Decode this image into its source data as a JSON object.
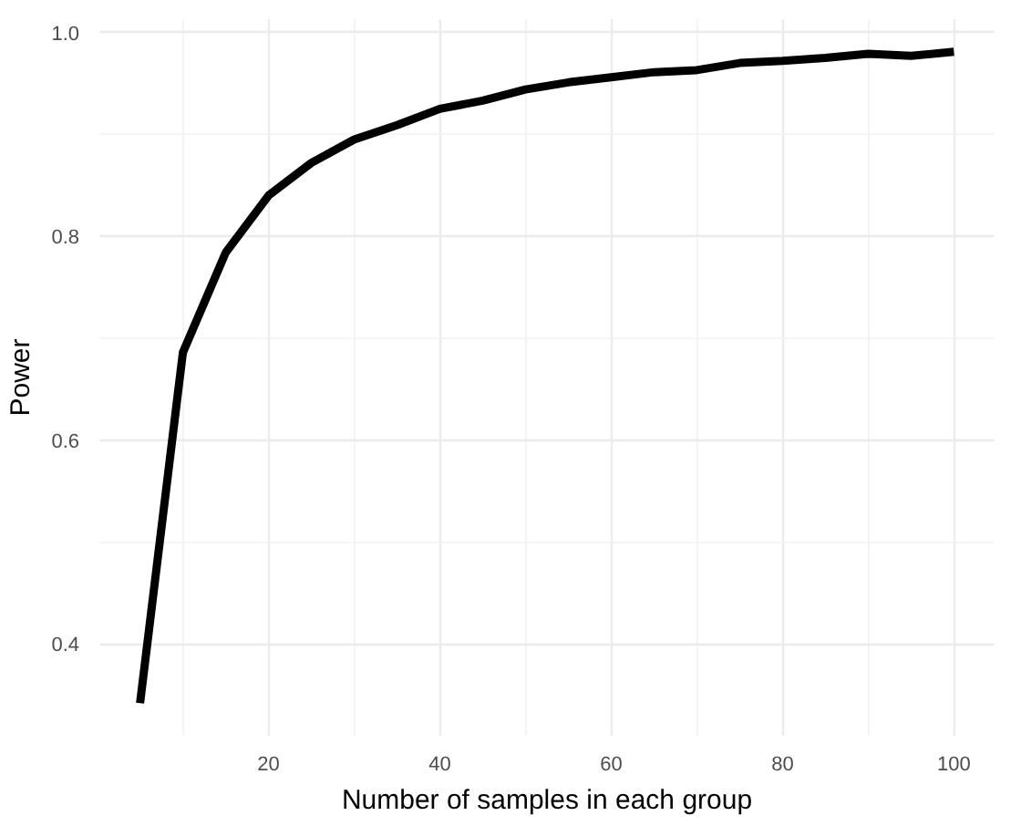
{
  "chart_data": {
    "type": "line",
    "xlabel": "Number of samples in each group",
    "ylabel": "Power",
    "x": [
      5,
      10,
      15,
      20,
      25,
      30,
      35,
      40,
      45,
      50,
      55,
      60,
      65,
      70,
      75,
      80,
      85,
      90,
      95,
      100
    ],
    "series": [
      {
        "color": "#000000",
        "values": [
          0.342,
          0.686,
          0.784,
          0.84,
          0.872,
          0.895,
          0.909,
          0.925,
          0.933,
          0.944,
          0.951,
          0.956,
          0.961,
          0.963,
          0.97,
          0.972,
          0.975,
          0.979,
          0.977,
          0.981
        ]
      }
    ],
    "xlim": [
      0.25,
      104.75
    ],
    "ylim": [
      0.31,
      1.013
    ],
    "xticks": [
      20,
      40,
      60,
      80,
      100
    ],
    "yticks": [
      {
        "value": 0.4,
        "label": "0.4"
      },
      {
        "value": 0.6,
        "label": "0.6"
      },
      {
        "value": 0.8,
        "label": "0.8"
      },
      {
        "value": 1.0,
        "label": "1.0"
      }
    ],
    "grid": true,
    "marker": "none",
    "line_style": "solid"
  }
}
